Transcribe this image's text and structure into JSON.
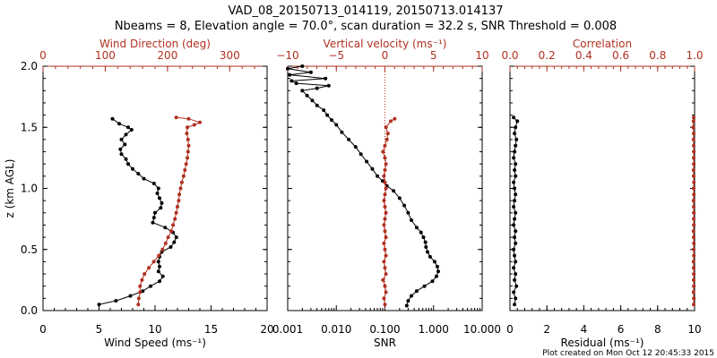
{
  "title_line1": "VAD_08_20150713_014119, 20150713.014137",
  "title_line2": "Nbeams = 8, Elevation angle = 70.0°, scan duration = 32.2 s, SNR Threshold = 0.008",
  "footer": "Plot created on Mon Oct 12 20:45:33 2015",
  "colors": {
    "black": "#000000",
    "red": "#b03020"
  },
  "chart_data": [
    {
      "type": "line",
      "panel": "left",
      "ylabel": "z (km AGL)",
      "ylim": [
        0,
        2
      ],
      "yticks": [
        "0.0",
        "0.5",
        "1.0",
        "1.5",
        "2.0"
      ],
      "xlabel_bottom": "Wind Speed (ms⁻¹)",
      "xlim_bottom": [
        0,
        20
      ],
      "xticks_bottom": [
        "0",
        "5",
        "10",
        "15",
        "20"
      ],
      "xlabel_top": "Wind Direction (deg)",
      "xlim_top": [
        0,
        360
      ],
      "xticks_top": [
        "0",
        "100",
        "200",
        "300"
      ],
      "series": [
        {
          "axis": "bottom",
          "color": "#000000",
          "points": [
            [
              5.0,
              0.05
            ],
            [
              6.5,
              0.08
            ],
            [
              7.8,
              0.12
            ],
            [
              8.9,
              0.16
            ],
            [
              9.6,
              0.2
            ],
            [
              10.4,
              0.24
            ],
            [
              10.7,
              0.28
            ],
            [
              10.3,
              0.32
            ],
            [
              10.4,
              0.36
            ],
            [
              10.3,
              0.4
            ],
            [
              10.4,
              0.44
            ],
            [
              10.6,
              0.48
            ],
            [
              11.4,
              0.52
            ],
            [
              11.7,
              0.56
            ],
            [
              11.9,
              0.6
            ],
            [
              11.6,
              0.64
            ],
            [
              10.9,
              0.68
            ],
            [
              9.8,
              0.72
            ],
            [
              9.9,
              0.76
            ],
            [
              10.0,
              0.8
            ],
            [
              10.5,
              0.84
            ],
            [
              10.6,
              0.88
            ],
            [
              10.4,
              0.92
            ],
            [
              10.2,
              0.96
            ],
            [
              10.3,
              1.0
            ],
            [
              9.9,
              1.04
            ],
            [
              9.0,
              1.08
            ],
            [
              8.5,
              1.12
            ],
            [
              8.0,
              1.16
            ],
            [
              7.6,
              1.2
            ],
            [
              7.4,
              1.24
            ],
            [
              7.0,
              1.28
            ],
            [
              6.9,
              1.32
            ],
            [
              7.3,
              1.36
            ],
            [
              7.0,
              1.4
            ],
            [
              7.4,
              1.44
            ],
            [
              7.9,
              1.48
            ],
            [
              7.6,
              1.5
            ],
            [
              6.8,
              1.53
            ],
            [
              6.2,
              1.57
            ]
          ]
        },
        {
          "axis": "top",
          "color": "#b03020",
          "points": [
            [
              153,
              0.05
            ],
            [
              154,
              0.1
            ],
            [
              156,
              0.15
            ],
            [
              156,
              0.2
            ],
            [
              159,
              0.25
            ],
            [
              163,
              0.3
            ],
            [
              170,
              0.35
            ],
            [
              178,
              0.4
            ],
            [
              186,
              0.45
            ],
            [
              192,
              0.5
            ],
            [
              197,
              0.55
            ],
            [
              201,
              0.6
            ],
            [
              206,
              0.65
            ],
            [
              209,
              0.7
            ],
            [
              212,
              0.75
            ],
            [
              214,
              0.8
            ],
            [
              216,
              0.85
            ],
            [
              218,
              0.9
            ],
            [
              219,
              0.95
            ],
            [
              221,
              1.0
            ],
            [
              223,
              1.05
            ],
            [
              226,
              1.1
            ],
            [
              228,
              1.15
            ],
            [
              230,
              1.2
            ],
            [
              232,
              1.25
            ],
            [
              233,
              1.3
            ],
            [
              234,
              1.35
            ],
            [
              233,
              1.4
            ],
            [
              231,
              1.45
            ],
            [
              232,
              1.5
            ],
            [
              243,
              1.52
            ],
            [
              252,
              1.54
            ],
            [
              234,
              1.57
            ],
            [
              214,
              1.58
            ]
          ]
        }
      ]
    },
    {
      "type": "line",
      "panel": "middle",
      "ylim": [
        0,
        2
      ],
      "xlabel_bottom": "SNR",
      "xscale_bottom": "log",
      "xlim_bottom": [
        0.001,
        10
      ],
      "xticks_bottom": [
        "0.001",
        "0.010",
        "0.100",
        "1.000",
        "10.000"
      ],
      "xlabel_top": "Vertical velocity (ms⁻¹)",
      "xlim_top": [
        -10,
        10
      ],
      "xticks_top": [
        "−10",
        "−5",
        "0",
        "5",
        "10"
      ],
      "reference_line": {
        "axis": "top",
        "x": 0,
        "style": "dotted",
        "color": "#b03020"
      },
      "series": [
        {
          "axis": "bottom",
          "color": "#000000",
          "points": [
            [
              0.28,
              0.04
            ],
            [
              0.3,
              0.08
            ],
            [
              0.35,
              0.12
            ],
            [
              0.45,
              0.16
            ],
            [
              0.65,
              0.2
            ],
            [
              0.95,
              0.24
            ],
            [
              1.15,
              0.28
            ],
            [
              1.25,
              0.32
            ],
            [
              1.2,
              0.36
            ],
            [
              1.05,
              0.4
            ],
            [
              0.85,
              0.44
            ],
            [
              0.75,
              0.48
            ],
            [
              0.7,
              0.52
            ],
            [
              0.68,
              0.56
            ],
            [
              0.62,
              0.6
            ],
            [
              0.55,
              0.64
            ],
            [
              0.45,
              0.68
            ],
            [
              0.35,
              0.74
            ],
            [
              0.3,
              0.8
            ],
            [
              0.25,
              0.86
            ],
            [
              0.2,
              0.92
            ],
            [
              0.15,
              0.98
            ],
            [
              0.11,
              1.02
            ],
            [
              0.09,
              1.06
            ],
            [
              0.07,
              1.1
            ],
            [
              0.055,
              1.16
            ],
            [
              0.042,
              1.22
            ],
            [
              0.032,
              1.28
            ],
            [
              0.025,
              1.34
            ],
            [
              0.018,
              1.4
            ],
            [
              0.013,
              1.46
            ],
            [
              0.01,
              1.52
            ],
            [
              0.008,
              1.56
            ],
            [
              0.0065,
              1.6
            ],
            [
              0.0055,
              1.64
            ],
            [
              0.004,
              1.68
            ],
            [
              0.0032,
              1.72
            ],
            [
              0.0025,
              1.76
            ],
            [
              0.002,
              1.8
            ],
            [
              0.004,
              1.82
            ],
            [
              0.007,
              1.84
            ],
            [
              0.0015,
              1.86
            ],
            [
              0.0012,
              1.88
            ],
            [
              0.006,
              1.9
            ],
            [
              0.0011,
              1.93
            ],
            [
              0.003,
              1.95
            ],
            [
              0.001,
              1.98
            ],
            [
              0.002,
              2.0
            ]
          ]
        },
        {
          "axis": "top",
          "color": "#b03020",
          "points": [
            [
              0.0,
              0.05
            ],
            [
              -0.1,
              0.1
            ],
            [
              0.1,
              0.15
            ],
            [
              0.0,
              0.2
            ],
            [
              -0.2,
              0.25
            ],
            [
              0.1,
              0.3
            ],
            [
              0.0,
              0.35
            ],
            [
              -0.1,
              0.4
            ],
            [
              0.1,
              0.45
            ],
            [
              0.0,
              0.5
            ],
            [
              -0.1,
              0.55
            ],
            [
              0.1,
              0.6
            ],
            [
              0.0,
              0.65
            ],
            [
              -0.1,
              0.7
            ],
            [
              0.0,
              0.75
            ],
            [
              0.1,
              0.8
            ],
            [
              0.0,
              0.85
            ],
            [
              -0.1,
              0.9
            ],
            [
              0.0,
              0.95
            ],
            [
              0.1,
              1.0
            ],
            [
              0.0,
              1.05
            ],
            [
              -0.1,
              1.1
            ],
            [
              0.0,
              1.15
            ],
            [
              0.1,
              1.2
            ],
            [
              0.0,
              1.25
            ],
            [
              -0.2,
              1.3
            ],
            [
              0.0,
              1.35
            ],
            [
              0.2,
              1.4
            ],
            [
              0.3,
              1.45
            ],
            [
              0.1,
              1.5
            ],
            [
              0.6,
              1.55
            ],
            [
              1.0,
              1.57
            ]
          ]
        }
      ]
    },
    {
      "type": "line",
      "panel": "right",
      "ylim": [
        0,
        2
      ],
      "xlabel_bottom": "Residual (ms⁻¹)",
      "xlim_bottom": [
        0,
        10
      ],
      "xticks_bottom": [
        "0",
        "2",
        "4",
        "6",
        "8",
        "10"
      ],
      "xlabel_top": "Correlation",
      "xlim_top": [
        0,
        1
      ],
      "xticks_top": [
        "0.0",
        "0.2",
        "0.4",
        "0.6",
        "0.8",
        "1.0"
      ],
      "series": [
        {
          "axis": "bottom",
          "color": "#000000",
          "points": [
            [
              0.25,
              0.05
            ],
            [
              0.3,
              0.1
            ],
            [
              0.2,
              0.15
            ],
            [
              0.35,
              0.2
            ],
            [
              0.25,
              0.25
            ],
            [
              0.3,
              0.3
            ],
            [
              0.2,
              0.35
            ],
            [
              0.3,
              0.4
            ],
            [
              0.25,
              0.45
            ],
            [
              0.2,
              0.5
            ],
            [
              0.3,
              0.55
            ],
            [
              0.25,
              0.6
            ],
            [
              0.3,
              0.65
            ],
            [
              0.2,
              0.7
            ],
            [
              0.25,
              0.75
            ],
            [
              0.3,
              0.8
            ],
            [
              0.2,
              0.85
            ],
            [
              0.25,
              0.9
            ],
            [
              0.3,
              0.95
            ],
            [
              0.25,
              1.0
            ],
            [
              0.2,
              1.05
            ],
            [
              0.3,
              1.1
            ],
            [
              0.25,
              1.15
            ],
            [
              0.3,
              1.2
            ],
            [
              0.2,
              1.25
            ],
            [
              0.25,
              1.3
            ],
            [
              0.3,
              1.35
            ],
            [
              0.35,
              1.4
            ],
            [
              0.25,
              1.45
            ],
            [
              0.3,
              1.5
            ],
            [
              0.4,
              1.55
            ],
            [
              0.2,
              1.58
            ]
          ]
        },
        {
          "axis": "top",
          "color": "#b03020",
          "points": [
            [
              0.995,
              0.05
            ],
            [
              0.996,
              0.1
            ],
            [
              0.994,
              0.15
            ],
            [
              0.996,
              0.2
            ],
            [
              0.995,
              0.25
            ],
            [
              0.996,
              0.3
            ],
            [
              0.995,
              0.35
            ],
            [
              0.994,
              0.4
            ],
            [
              0.996,
              0.45
            ],
            [
              0.995,
              0.5
            ],
            [
              0.996,
              0.55
            ],
            [
              0.995,
              0.6
            ],
            [
              0.994,
              0.65
            ],
            [
              0.996,
              0.7
            ],
            [
              0.995,
              0.75
            ],
            [
              0.996,
              0.8
            ],
            [
              0.995,
              0.85
            ],
            [
              0.994,
              0.9
            ],
            [
              0.996,
              0.95
            ],
            [
              0.995,
              1.0
            ],
            [
              0.996,
              1.05
            ],
            [
              0.995,
              1.1
            ],
            [
              0.994,
              1.15
            ],
            [
              0.996,
              1.2
            ],
            [
              0.995,
              1.25
            ],
            [
              0.996,
              1.3
            ],
            [
              0.995,
              1.35
            ],
            [
              0.994,
              1.4
            ],
            [
              0.995,
              1.45
            ],
            [
              0.992,
              1.5
            ],
            [
              0.994,
              1.55
            ],
            [
              0.995,
              1.58
            ]
          ]
        }
      ]
    }
  ]
}
